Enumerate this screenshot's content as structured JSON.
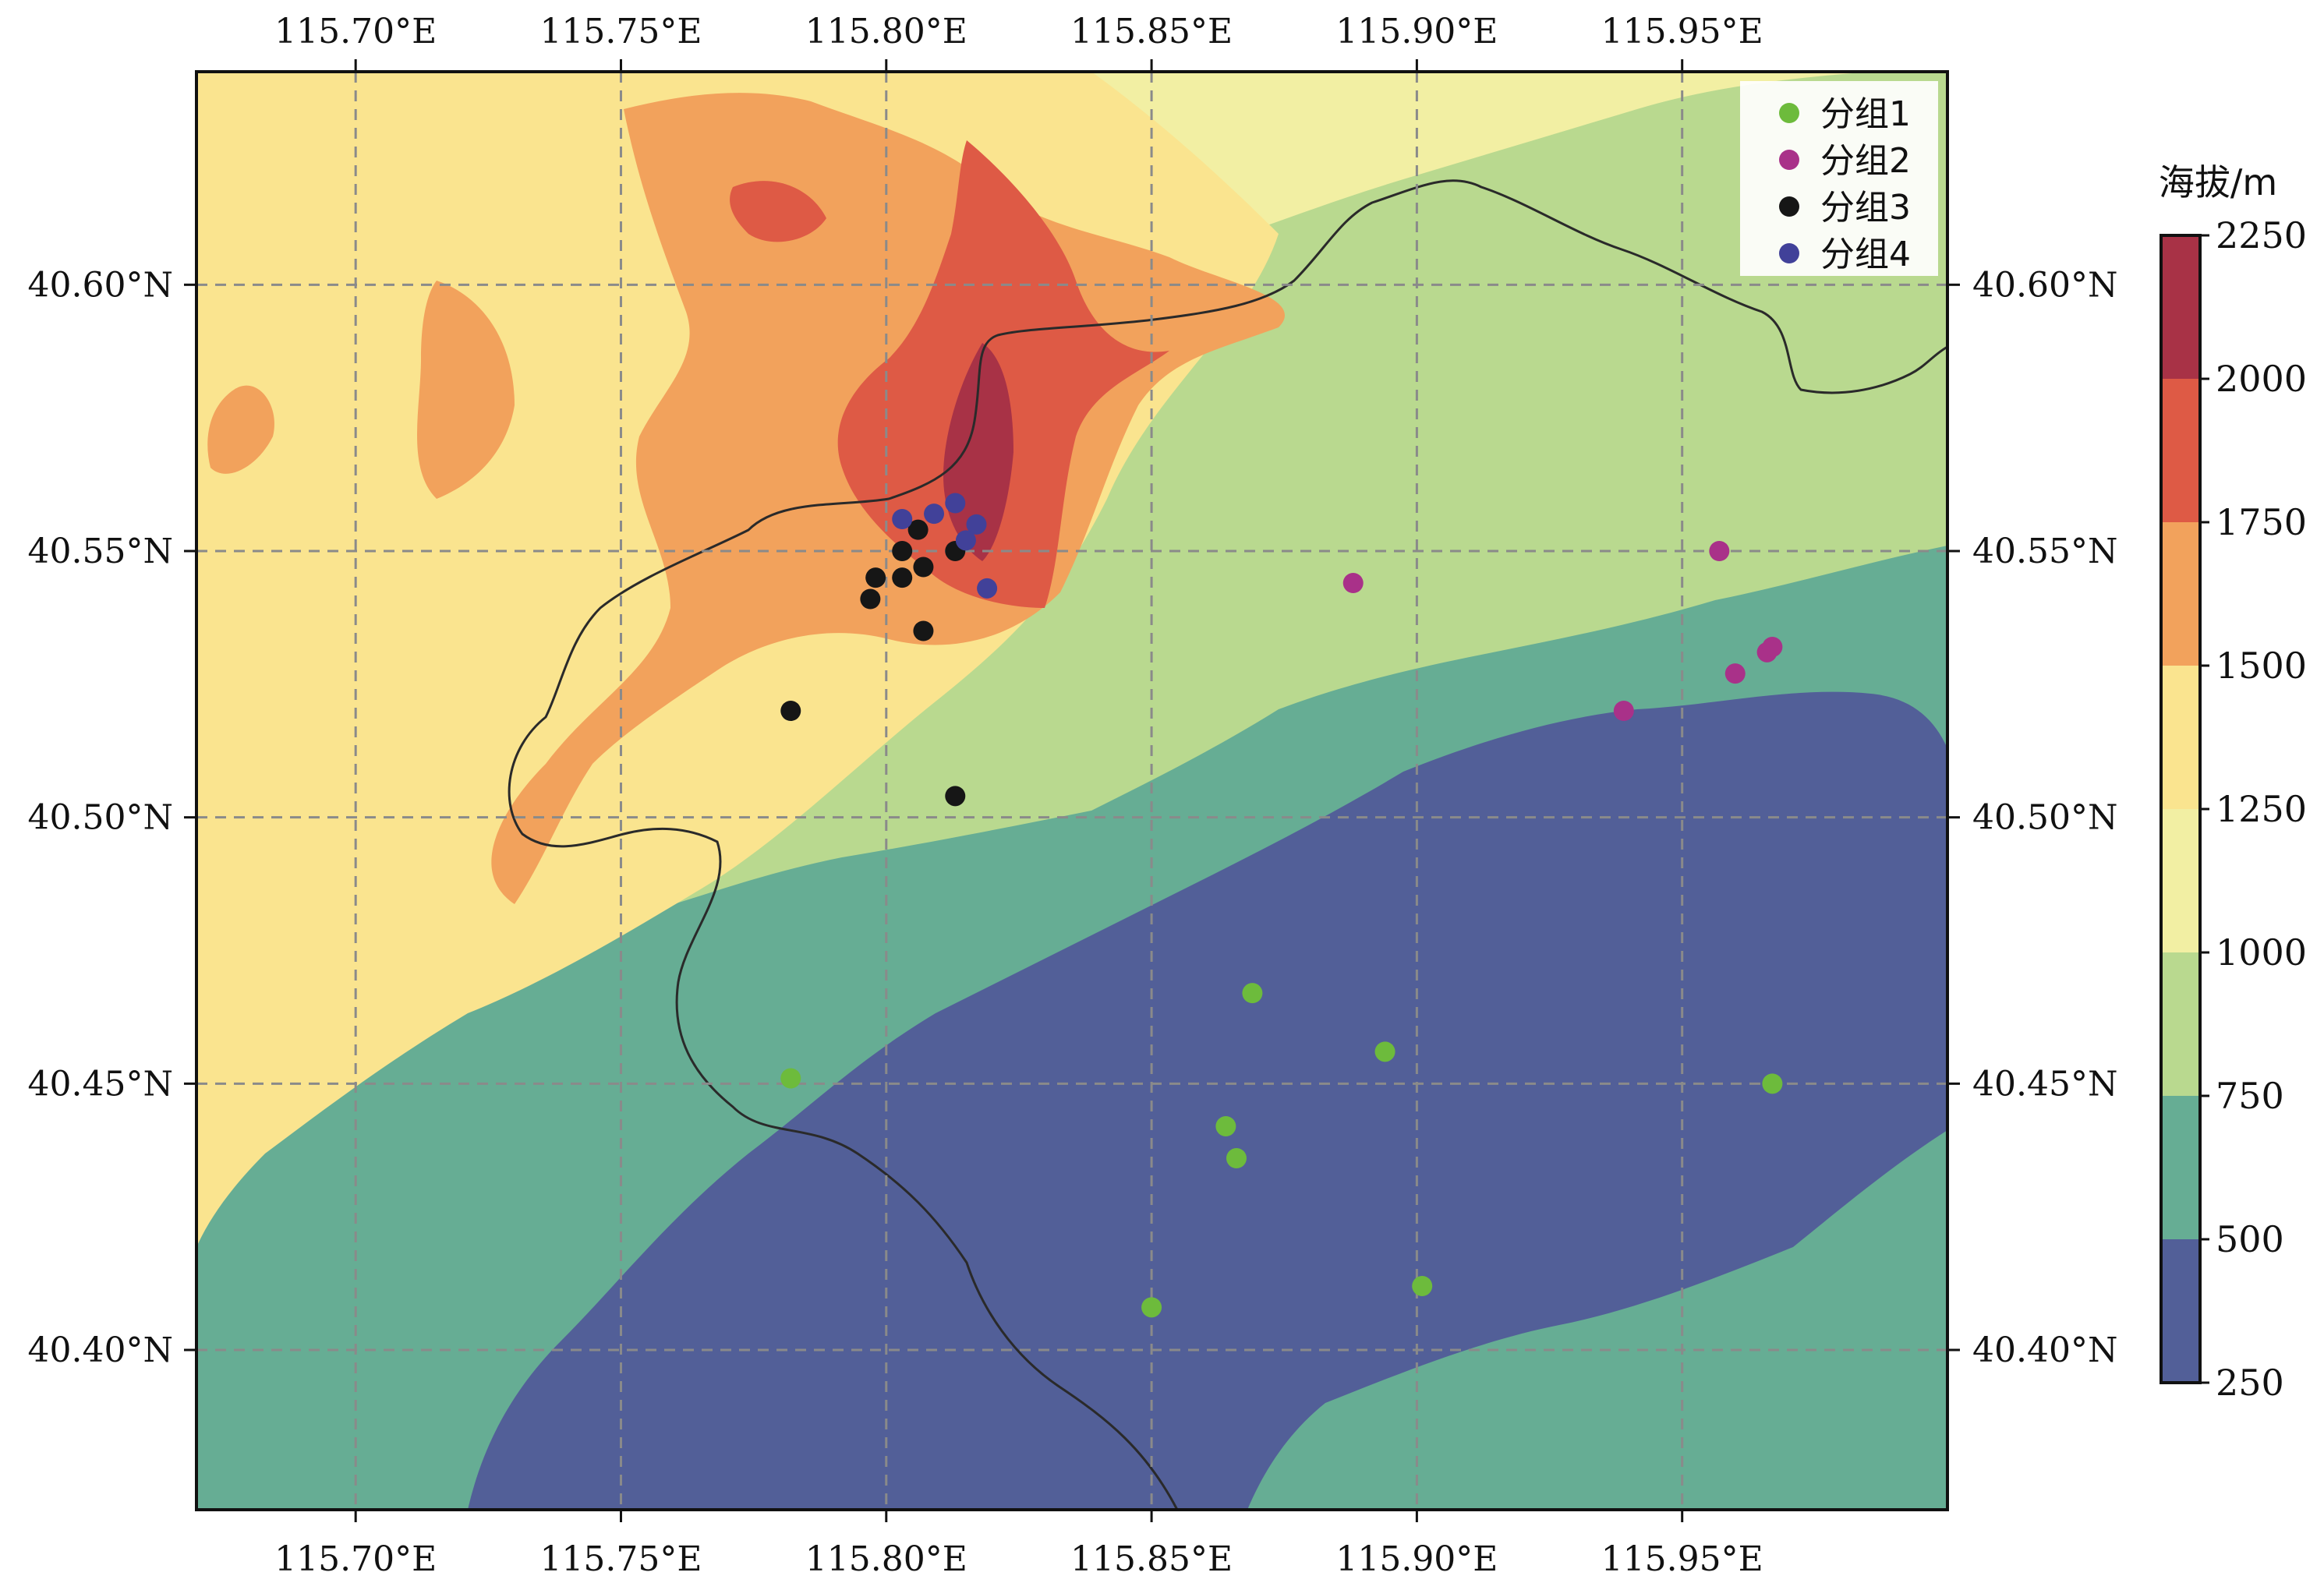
{
  "chart_data": {
    "type": "scatter",
    "title": "",
    "basemap": "elevation contour-filled map with boundary line",
    "x_ticks": [
      "115.70°E",
      "115.75°E",
      "115.80°E",
      "115.85°E",
      "115.90°E",
      "115.95°E"
    ],
    "x_tick_values": [
      115.7,
      115.75,
      115.8,
      115.85,
      115.9,
      115.95
    ],
    "y_ticks": [
      "40.60°N",
      "40.55°N",
      "40.50°N",
      "40.45°N",
      "40.40°N"
    ],
    "y_tick_values": [
      40.6,
      40.55,
      40.5,
      40.45,
      40.4
    ],
    "xlim": [
      115.67,
      116.0
    ],
    "ylim": [
      40.37,
      40.64
    ],
    "grid": true,
    "legend_position": "top-right",
    "colorbar": {
      "title": "海拔/m",
      "ticks": [
        "2250",
        "2000",
        "1750",
        "1500",
        "1250",
        "1000",
        "750",
        "500",
        "250"
      ],
      "bands": [
        {
          "from": 2000,
          "to": 2250,
          "color": "#a83246"
        },
        {
          "from": 1750,
          "to": 2000,
          "color": "#de5a45"
        },
        {
          "from": 1500,
          "to": 1750,
          "color": "#f2a25c"
        },
        {
          "from": 1250,
          "to": 1500,
          "color": "#fae48f"
        },
        {
          "from": 1000,
          "to": 1250,
          "color": "#f2efa3"
        },
        {
          "from": 750,
          "to": 1000,
          "color": "#b9d98f"
        },
        {
          "from": 500,
          "to": 750,
          "color": "#66ad94"
        },
        {
          "from": 250,
          "to": 500,
          "color": "#525f98"
        }
      ]
    },
    "series": [
      {
        "name": "分组1",
        "color": "#6dbb3c",
        "points": [
          {
            "x": 115.782,
            "y": 40.451
          },
          {
            "x": 115.869,
            "y": 40.467
          },
          {
            "x": 115.894,
            "y": 40.456
          },
          {
            "x": 115.864,
            "y": 40.442
          },
          {
            "x": 115.866,
            "y": 40.436
          },
          {
            "x": 115.85,
            "y": 40.408
          },
          {
            "x": 115.901,
            "y": 40.412
          },
          {
            "x": 115.967,
            "y": 40.45
          }
        ]
      },
      {
        "name": "分组2",
        "color": "#a93189",
        "points": [
          {
            "x": 115.888,
            "y": 40.544
          },
          {
            "x": 115.957,
            "y": 40.55
          },
          {
            "x": 115.96,
            "y": 40.527
          },
          {
            "x": 115.966,
            "y": 40.531
          },
          {
            "x": 115.967,
            "y": 40.532
          },
          {
            "x": 115.939,
            "y": 40.52
          }
        ]
      },
      {
        "name": "分组3",
        "color": "#161616",
        "points": [
          {
            "x": 115.806,
            "y": 40.554
          },
          {
            "x": 115.803,
            "y": 40.55
          },
          {
            "x": 115.807,
            "y": 40.547
          },
          {
            "x": 115.798,
            "y": 40.545
          },
          {
            "x": 115.803,
            "y": 40.545
          },
          {
            "x": 115.797,
            "y": 40.541
          },
          {
            "x": 115.813,
            "y": 40.55
          },
          {
            "x": 115.807,
            "y": 40.535
          },
          {
            "x": 115.782,
            "y": 40.52
          },
          {
            "x": 115.813,
            "y": 40.504
          }
        ]
      },
      {
        "name": "分组4",
        "color": "#414199",
        "points": [
          {
            "x": 115.803,
            "y": 40.556
          },
          {
            "x": 115.809,
            "y": 40.557
          },
          {
            "x": 115.813,
            "y": 40.559
          },
          {
            "x": 115.817,
            "y": 40.555
          },
          {
            "x": 115.815,
            "y": 40.552
          },
          {
            "x": 115.819,
            "y": 40.543
          }
        ]
      }
    ]
  }
}
